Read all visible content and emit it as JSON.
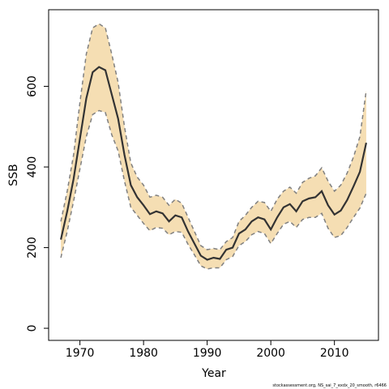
{
  "chart_data": {
    "type": "line",
    "xlabel": "Year",
    "ylabel": "SSB",
    "footnote": "stockassessment.org, NS_sai_7_exdx_20_smooth, r6466",
    "x": [
      1967,
      1968,
      1969,
      1970,
      1971,
      1972,
      1973,
      1974,
      1975,
      1976,
      1977,
      1978,
      1979,
      1980,
      1981,
      1982,
      1983,
      1984,
      1985,
      1986,
      1987,
      1988,
      1989,
      1990,
      1991,
      1992,
      1993,
      1994,
      1995,
      1996,
      1997,
      1998,
      1999,
      2000,
      2001,
      2002,
      2003,
      2004,
      2005,
      2006,
      2007,
      2008,
      2009,
      2010,
      2011,
      2012,
      2013,
      2014,
      2015
    ],
    "values": [
      220,
      290,
      370,
      470,
      570,
      635,
      648,
      640,
      580,
      520,
      430,
      355,
      325,
      305,
      283,
      290,
      285,
      265,
      280,
      275,
      240,
      210,
      180,
      170,
      175,
      172,
      195,
      200,
      235,
      245,
      265,
      275,
      270,
      245,
      275,
      300,
      308,
      290,
      315,
      322,
      325,
      340,
      305,
      282,
      292,
      318,
      352,
      388,
      460
    ],
    "upper": [
      265,
      340,
      430,
      560,
      680,
      745,
      755,
      745,
      680,
      610,
      500,
      410,
      375,
      355,
      325,
      330,
      325,
      305,
      320,
      310,
      275,
      240,
      205,
      195,
      198,
      195,
      215,
      225,
      265,
      280,
      300,
      315,
      312,
      290,
      320,
      340,
      350,
      335,
      362,
      372,
      378,
      398,
      365,
      340,
      355,
      385,
      425,
      475,
      590
    ],
    "lower": [
      175,
      240,
      315,
      395,
      475,
      530,
      540,
      535,
      480,
      440,
      365,
      300,
      280,
      260,
      242,
      250,
      248,
      232,
      240,
      238,
      208,
      182,
      155,
      147,
      150,
      150,
      170,
      178,
      205,
      215,
      232,
      240,
      235,
      210,
      235,
      258,
      265,
      250,
      270,
      275,
      275,
      285,
      248,
      225,
      230,
      250,
      275,
      298,
      335
    ],
    "color": "#333333",
    "band_color": "#f5deb3",
    "band_edge_color": "#808080",
    "xlim": [
      1965.08,
      2016.92
    ],
    "xticks": [
      1970,
      1980,
      1990,
      2000,
      2010
    ],
    "ylim": [
      -30,
      790
    ],
    "yticks": [
      0,
      200,
      400,
      600
    ]
  }
}
